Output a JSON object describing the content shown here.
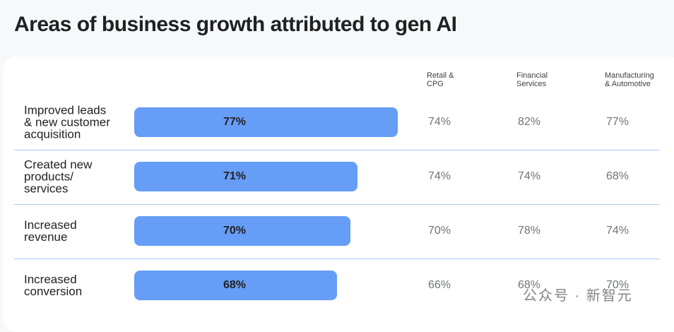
{
  "chart_data": {
    "type": "bar",
    "orientation": "horizontal",
    "title": "Areas of business growth attributed to gen AI",
    "categories": [
      "Improved leads\n& new customer\nacquisition",
      "Created new\nproducts/\nservices",
      "Increased\nrevenue",
      "Increased\nconversion"
    ],
    "values": [
      77,
      71,
      70,
      68
    ],
    "value_labels": [
      "77%",
      "71%",
      "70%",
      "68%"
    ],
    "color": "#669df6",
    "xlim": [
      38,
      78
    ],
    "columns": [
      {
        "name": "Retail &\nCPG",
        "values": [
          74,
          74,
          70,
          66
        ],
        "value_labels": [
          "74%",
          "74%",
          "70%",
          "66%"
        ]
      },
      {
        "name": "Financial\nServices",
        "values": [
          82,
          74,
          78,
          68
        ],
        "value_labels": [
          "82%",
          "74%",
          "78%",
          "68%"
        ]
      },
      {
        "name": "Manufacturing\n& Automotive",
        "values": [
          77,
          68,
          74,
          70
        ],
        "value_labels": [
          "77%",
          "68%",
          "74%",
          "70%"
        ]
      }
    ],
    "watermark": "公众号 · 新智元"
  }
}
